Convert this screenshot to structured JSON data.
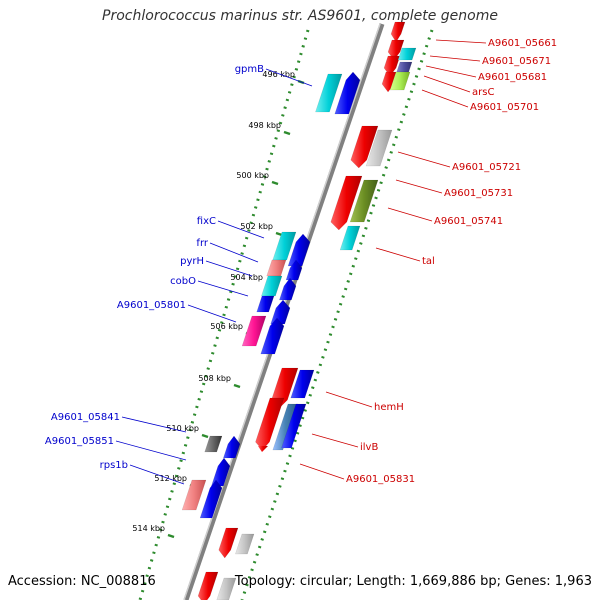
{
  "title": "Prochlorococcus marinus str. AS9601, complete genome",
  "footer": {
    "accession": "Accession: NC_008816",
    "summary": "Topology: circular; Length: 1,669,886 bp; Genes: 1,963"
  },
  "colors": {
    "backbone": "#808080",
    "forward_track": "#2e8b2e",
    "reverse_track": "#2e8b2e",
    "blue_label": "#0000cc",
    "red_label": "#cc0000",
    "tick": "#2e8b2e"
  },
  "scale_ticks": [
    {
      "label": "496 kbp"
    },
    {
      "label": "498 kbp"
    },
    {
      "label": "500 kbp"
    },
    {
      "label": "502 kbp"
    },
    {
      "label": "504 kbp"
    },
    {
      "label": "506 kbp"
    },
    {
      "label": "508 kbp"
    },
    {
      "label": "510 kbp"
    },
    {
      "label": "512 kbp"
    },
    {
      "label": "514 kbp"
    }
  ],
  "blue_labels": [
    {
      "text": "gpmB"
    },
    {
      "text": "fixC"
    },
    {
      "text": "frr"
    },
    {
      "text": "pyrH"
    },
    {
      "text": "cobO"
    },
    {
      "text": "A9601_05801"
    },
    {
      "text": "A9601_05841"
    },
    {
      "text": "A9601_05851"
    },
    {
      "text": "rps1b"
    }
  ],
  "red_labels": [
    {
      "text": "A9601_05661"
    },
    {
      "text": "A9601_05671"
    },
    {
      "text": "A9601_05681"
    },
    {
      "text": "arsC"
    },
    {
      "text": "A9601_05701"
    },
    {
      "text": "A9601_05721"
    },
    {
      "text": "A9601_05731"
    },
    {
      "text": "A9601_05741"
    },
    {
      "text": "tal"
    },
    {
      "text": "hemH"
    },
    {
      "text": "ilvB"
    },
    {
      "text": "A9601_05831"
    }
  ]
}
